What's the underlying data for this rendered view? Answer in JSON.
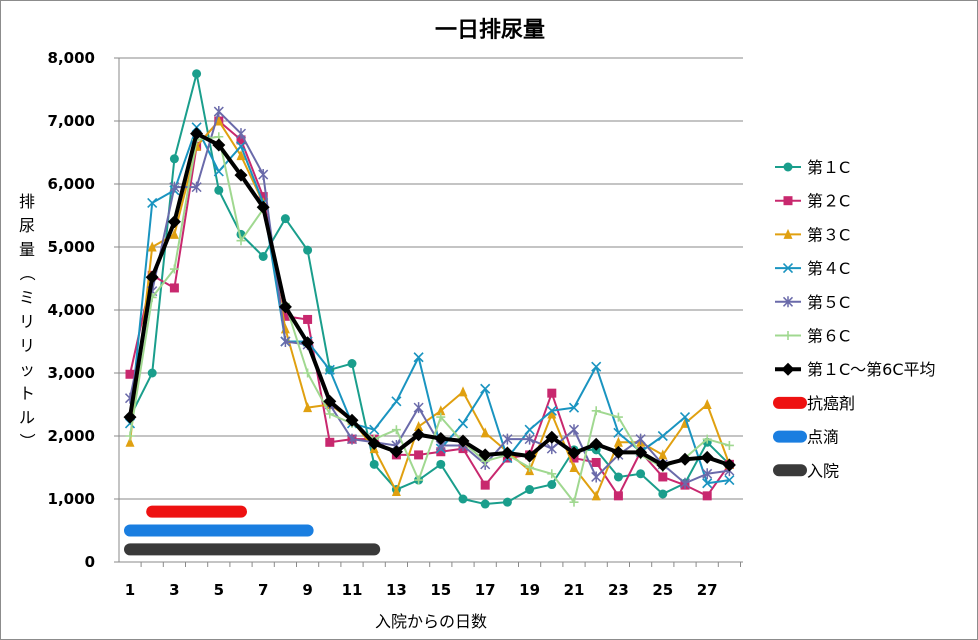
{
  "chart_data": {
    "type": "line",
    "title": "一日排尿量",
    "xlabel": "入院からの日数",
    "ylabel": "排尿量（ミリリットル）",
    "ylim": [
      0,
      8000
    ],
    "yticks": [
      0,
      1000,
      2000,
      3000,
      4000,
      5000,
      6000,
      7000,
      8000
    ],
    "ytick_labels": [
      "0",
      "1,000",
      "2,000",
      "3,000",
      "4,000",
      "5,000",
      "6,000",
      "7,000",
      "8,000"
    ],
    "x": [
      1,
      2,
      3,
      4,
      5,
      6,
      7,
      8,
      9,
      10,
      11,
      12,
      13,
      14,
      15,
      16,
      17,
      18,
      19,
      20,
      21,
      22,
      23,
      24,
      25,
      26,
      27,
      28
    ],
    "xtick_labels": [
      "1",
      "3",
      "5",
      "7",
      "9",
      "11",
      "13",
      "15",
      "17",
      "19",
      "21",
      "23",
      "25",
      "27"
    ],
    "grid": "horizontal",
    "legend_position": "right",
    "series": [
      {
        "name": "第１C",
        "color": "#1a9e8c",
        "marker": "circle",
        "values": [
          2300,
          3000,
          6400,
          7750,
          5900,
          5200,
          4850,
          5450,
          4950,
          3050,
          3150,
          1550,
          1150,
          1300,
          1550,
          1000,
          920,
          950,
          1150,
          1230,
          1780,
          1780,
          1350,
          1400,
          1080,
          1250,
          1900,
          1550
        ]
      },
      {
        "name": "第２C",
        "color": "#c8286e",
        "marker": "square",
        "values": [
          2980,
          4550,
          4350,
          6600,
          7000,
          6700,
          5800,
          3900,
          3850,
          1900,
          1950,
          1950,
          1700,
          1700,
          1750,
          1800,
          1220,
          1650,
          1700,
          2680,
          1650,
          1580,
          1050,
          1750,
          1350,
          1220,
          1050,
          1550
        ]
      },
      {
        "name": "第３C",
        "color": "#e0a010",
        "marker": "triangle",
        "values": [
          1900,
          5000,
          5200,
          6600,
          7000,
          6450,
          5700,
          3700,
          2450,
          2500,
          2250,
          1800,
          1120,
          2150,
          2400,
          2700,
          2050,
          1750,
          1450,
          2350,
          1500,
          1050,
          1900,
          1900,
          1700,
          2200,
          2500,
          1550
        ]
      },
      {
        "name": "第４C",
        "color": "#1a94c0",
        "marker": "x",
        "values": [
          2200,
          5700,
          5900,
          6900,
          6200,
          6600,
          5700,
          3500,
          3500,
          3050,
          2200,
          2100,
          2550,
          3250,
          1800,
          2200,
          2750,
          1650,
          2100,
          2400,
          2450,
          3100,
          2050,
          1750,
          2000,
          2300,
          1250,
          1300
        ]
      },
      {
        "name": "第５C",
        "color": "#6a6aaa",
        "marker": "star",
        "values": [
          2600,
          4300,
          5950,
          5950,
          7150,
          6800,
          6150,
          3500,
          3450,
          2500,
          1950,
          1900,
          1850,
          2450,
          1850,
          1850,
          1550,
          1950,
          1950,
          1800,
          2100,
          1350,
          1700,
          1950,
          1550,
          1250,
          1400,
          1450
        ]
      },
      {
        "name": "第６C",
        "color": "#a0d890",
        "marker": "plus",
        "values": [
          2000,
          4200,
          4650,
          6700,
          6750,
          5100,
          5600,
          4100,
          3000,
          2350,
          2200,
          1950,
          2100,
          1300,
          2300,
          1900,
          1600,
          1700,
          1500,
          1400,
          950,
          2400,
          2300,
          1700,
          1500,
          1650,
          1950,
          1850
        ]
      },
      {
        "name": "第１C～第6C平均",
        "color": "#000000",
        "marker": "diamond",
        "emphasis": true,
        "values": [
          2300,
          4520,
          5400,
          6800,
          6620,
          6140,
          5630,
          4050,
          3480,
          2550,
          2250,
          1880,
          1750,
          2020,
          1960,
          1920,
          1700,
          1730,
          1680,
          1980,
          1730,
          1870,
          1740,
          1740,
          1540,
          1630,
          1660,
          1540
        ]
      }
    ],
    "periods": [
      {
        "name": "抗癌剤",
        "color": "#ee1111",
        "start": 2,
        "end": 6,
        "y": 800
      },
      {
        "name": "点滴",
        "color": "#1a7ee0",
        "start": 1,
        "end": 9,
        "y": 500
      },
      {
        "name": "入院",
        "color": "#3a3a3a",
        "start": 1,
        "end": 12,
        "y": 200
      }
    ]
  }
}
